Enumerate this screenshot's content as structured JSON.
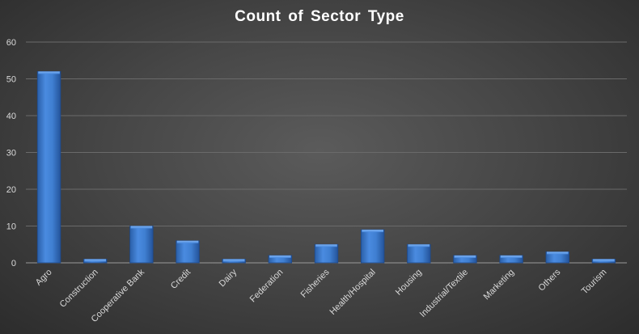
{
  "chart_data": {
    "type": "bar",
    "title": "Count  of Sector  Type",
    "categories": [
      "Agro",
      "Construction",
      "Cooperative Bank",
      "Credit",
      "Dairy",
      "Federation",
      "Fisheries",
      "Health/Hospital",
      "Housing",
      "Industrial/Textile",
      "Marketing",
      "Others",
      "Tourism"
    ],
    "values": [
      52,
      1,
      10,
      6,
      1,
      2,
      5,
      9,
      5,
      2,
      2,
      3,
      1
    ],
    "ylim": [
      0,
      60
    ],
    "yticks": [
      0,
      10,
      20,
      30,
      40,
      50,
      60
    ],
    "xlabel": "",
    "ylabel": "",
    "grid": true,
    "legend": "none",
    "bar_color": "#3f7fd1"
  }
}
